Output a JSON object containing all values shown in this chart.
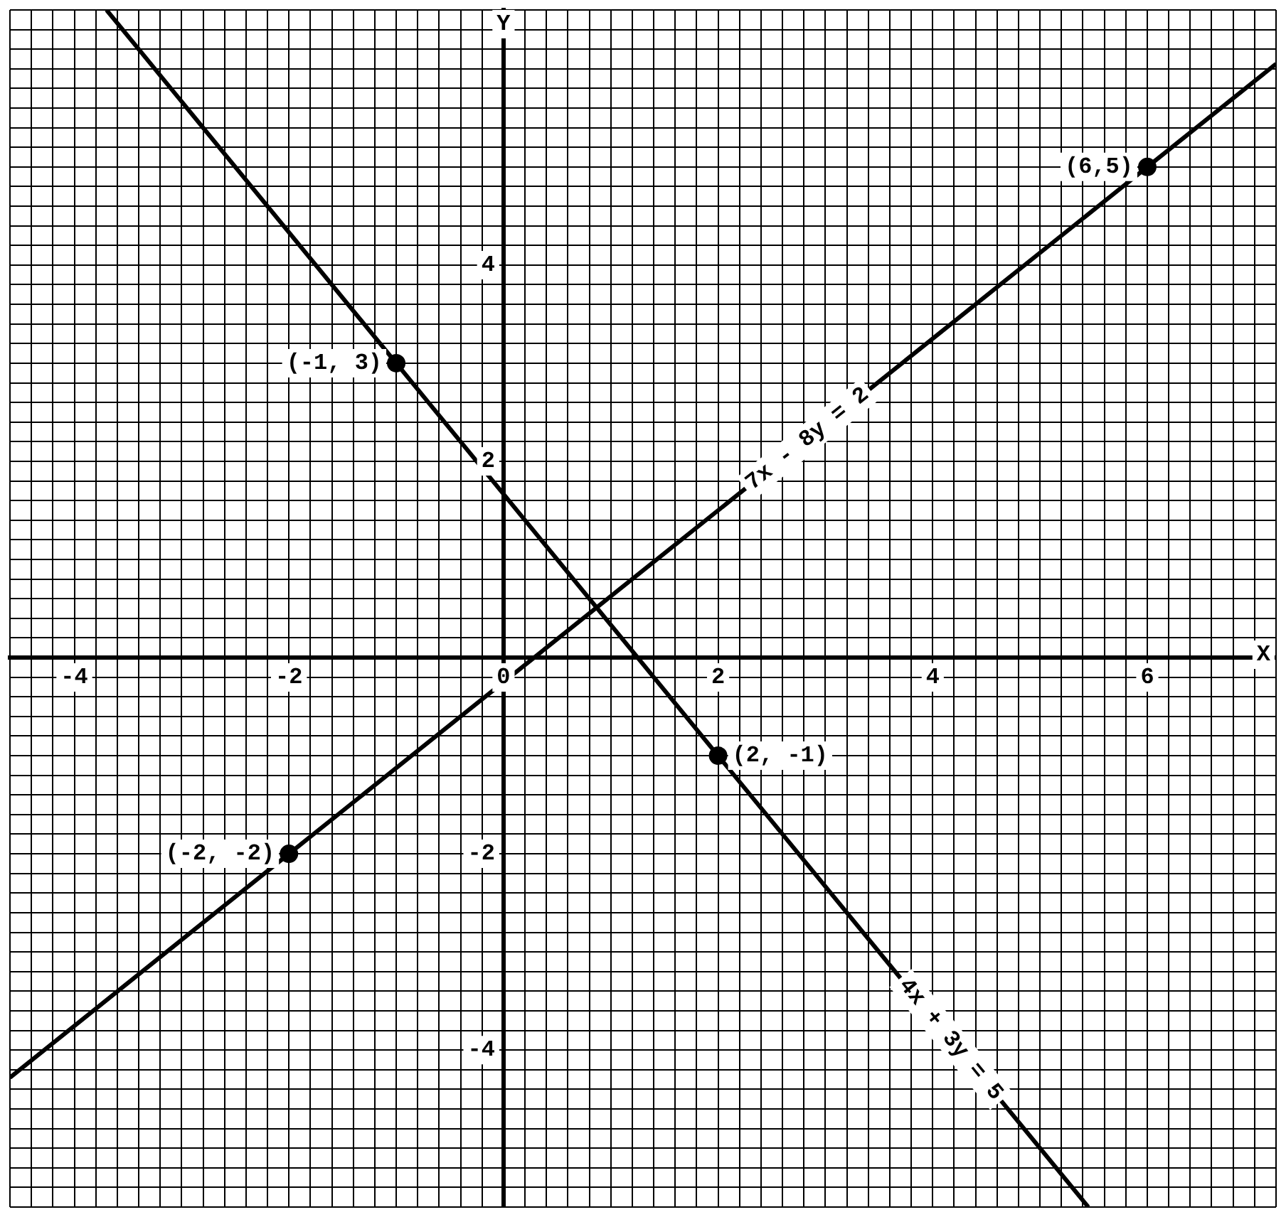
{
  "chart_data": {
    "type": "line",
    "xlabel": "X",
    "ylabel": "Y",
    "grid": true,
    "xlim": [
      -4.6,
      7.2
    ],
    "ylim": [
      -5.6,
      6.6
    ],
    "xticks": [
      {
        "value": -4.6,
        "label": null
      },
      {
        "value": -4.4,
        "label": null
      },
      {
        "value": -4.2,
        "label": null
      },
      -4,
      {
        "value": -3.8,
        "label": null
      },
      {
        "value": -3.6,
        "label": null
      },
      {
        "value": -3.4,
        "label": null
      },
      {
        "value": -3.2,
        "label": null
      },
      {
        "value": -3,
        "label": null
      },
      {
        "value": -2.8,
        "label": null
      },
      {
        "value": -2.6,
        "label": null
      },
      {
        "value": -2.4,
        "label": null
      },
      {
        "value": -2.2,
        "label": null
      },
      -2,
      {
        "value": -1.8,
        "label": null
      },
      {
        "value": -1.6,
        "label": null
      },
      {
        "value": -1.4,
        "label": null
      },
      {
        "value": -1.2,
        "label": null
      },
      {
        "value": -1,
        "label": null
      },
      {
        "value": -0.8,
        "label": null
      },
      {
        "value": -0.6,
        "label": null
      },
      {
        "value": -0.4,
        "label": null
      },
      {
        "value": -0.2,
        "label": null
      },
      0,
      {
        "value": 0.2,
        "label": null
      },
      {
        "value": 0.4,
        "label": null
      },
      {
        "value": 0.6,
        "label": null
      },
      {
        "value": 0.8,
        "label": null
      },
      {
        "value": 1,
        "label": null
      },
      {
        "value": 1.2,
        "label": null
      },
      {
        "value": 1.4,
        "label": null
      },
      {
        "value": 1.6,
        "label": null
      },
      {
        "value": 1.8,
        "label": null
      },
      2,
      {
        "value": 2.2,
        "label": null
      },
      {
        "value": 2.4,
        "label": null
      },
      {
        "value": 2.6,
        "label": null
      },
      {
        "value": 2.8,
        "label": null
      },
      {
        "value": 3,
        "label": null
      },
      {
        "value": 3.2,
        "label": null
      },
      {
        "value": 3.4,
        "label": null
      },
      {
        "value": 3.6,
        "label": null
      },
      {
        "value": 3.8,
        "label": null
      },
      4,
      {
        "value": 4.2,
        "label": null
      },
      {
        "value": 4.4,
        "label": null
      },
      {
        "value": 4.6,
        "label": null
      },
      {
        "value": 4.8,
        "label": null
      },
      {
        "value": 5,
        "label": null
      },
      {
        "value": 5.2,
        "label": null
      },
      {
        "value": 5.4,
        "label": null
      },
      {
        "value": 5.6,
        "label": null
      },
      {
        "value": 5.8,
        "label": null
      },
      6,
      {
        "value": 6.2,
        "label": null
      },
      {
        "value": 6.4,
        "label": null
      },
      {
        "value": 6.6,
        "label": null
      },
      {
        "value": 6.8,
        "label": null
      },
      {
        "value": 7,
        "label": null
      },
      {
        "value": 7.2,
        "label": null
      }
    ],
    "yticks": [
      {
        "value": -5.6,
        "label": null
      },
      {
        "value": -5.4,
        "label": null
      },
      {
        "value": -5.2,
        "label": null
      },
      {
        "value": -5,
        "label": null
      },
      {
        "value": -4.8,
        "label": null
      },
      {
        "value": -4.6,
        "label": null
      },
      {
        "value": -4.4,
        "label": null
      },
      {
        "value": -4.2,
        "label": null
      },
      -4,
      {
        "value": -3.8,
        "label": null
      },
      {
        "value": -3.6,
        "label": null
      },
      {
        "value": -3.4,
        "label": null
      },
      {
        "value": -3.2,
        "label": null
      },
      {
        "value": -3,
        "label": null
      },
      {
        "value": -2.8,
        "label": null
      },
      {
        "value": -2.6,
        "label": null
      },
      {
        "value": -2.4,
        "label": null
      },
      {
        "value": -2.2,
        "label": null
      },
      -2,
      {
        "value": -1.8,
        "label": null
      },
      {
        "value": -1.6,
        "label": null
      },
      {
        "value": -1.4,
        "label": null
      },
      {
        "value": -1.2,
        "label": null
      },
      {
        "value": -1,
        "label": null
      },
      {
        "value": -0.8,
        "label": null
      },
      {
        "value": -0.6,
        "label": null
      },
      {
        "value": -0.4,
        "label": null
      },
      {
        "value": -0.2,
        "label": null
      },
      {
        "value": 0,
        "label": null
      },
      {
        "value": 0.2,
        "label": null
      },
      {
        "value": 0.4,
        "label": null
      },
      {
        "value": 0.6,
        "label": null
      },
      {
        "value": 0.8,
        "label": null
      },
      {
        "value": 1,
        "label": null
      },
      {
        "value": 1.2,
        "label": null
      },
      {
        "value": 1.4,
        "label": null
      },
      {
        "value": 1.6,
        "label": null
      },
      {
        "value": 1.8,
        "label": null
      },
      2,
      {
        "value": 2.2,
        "label": null
      },
      {
        "value": 2.4,
        "label": null
      },
      {
        "value": 2.6,
        "label": null
      },
      {
        "value": 2.8,
        "label": null
      },
      {
        "value": 3,
        "label": null
      },
      {
        "value": 3.2,
        "label": null
      },
      {
        "value": 3.4,
        "label": null
      },
      {
        "value": 3.6,
        "label": null
      },
      {
        "value": 3.8,
        "label": null
      },
      4,
      {
        "value": 4.2,
        "label": null
      },
      {
        "value": 4.4,
        "label": null
      },
      {
        "value": 4.6,
        "label": null
      },
      {
        "value": 4.8,
        "label": null
      },
      {
        "value": 5,
        "label": null
      },
      {
        "value": 5.2,
        "label": null
      },
      {
        "value": 5.4,
        "label": null
      },
      {
        "value": 5.6,
        "label": null
      },
      {
        "value": 5.8,
        "label": null
      },
      {
        "value": 6,
        "label": null
      },
      {
        "value": 6.2,
        "label": null
      },
      {
        "value": 6.4,
        "label": null
      },
      {
        "value": 6.6,
        "label": null
      }
    ],
    "series": [
      {
        "name": "7x - 8y = 2",
        "type": "line",
        "marker": "none",
        "color": "#000000",
        "x": [
          -4.6,
          -2,
          6,
          7.2
        ],
        "values": [
          -4.28,
          -2,
          5,
          6.05
        ]
      },
      {
        "name": "4x + 3y = 5",
        "type": "line",
        "marker": "none",
        "color": "#000000",
        "x": [
          -3.7,
          -1,
          2,
          5.45
        ],
        "values": [
          6.6,
          3,
          -1,
          -5.6
        ]
      },
      {
        "type": "scatter",
        "marker": "circle",
        "color": "#000000",
        "x": [
          -1,
          2,
          -2,
          6
        ],
        "values": [
          3,
          -1,
          -2,
          5
        ]
      }
    ],
    "annotations": [
      {
        "text": "(-1, 3)",
        "x": -1,
        "y": 3
      },
      {
        "text": "(2, -1)",
        "x": 2,
        "y": -1
      },
      {
        "text": "(-2, -2)",
        "x": -2,
        "y": -2
      },
      {
        "text": "(6,5)",
        "x": 6,
        "y": 5
      }
    ]
  }
}
